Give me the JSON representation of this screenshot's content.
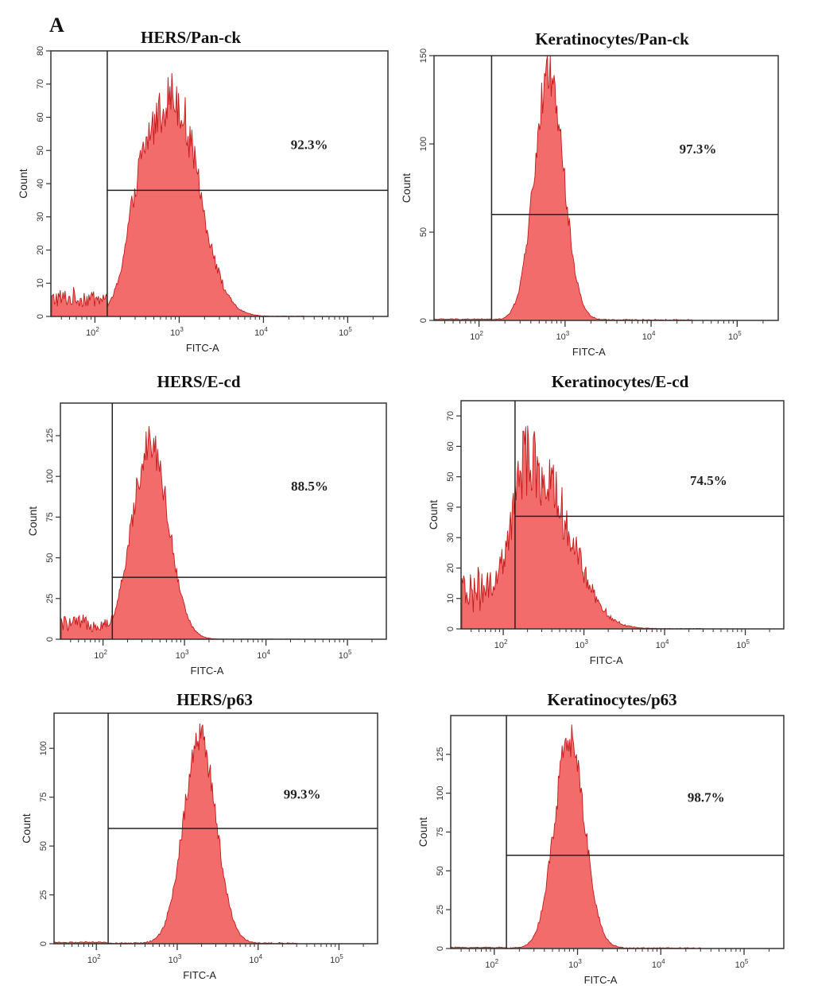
{
  "panel_label": "A",
  "colors": {
    "fill": "#f26c6c",
    "edge": "#c41a1a",
    "axis": "#333333",
    "gate": "#222222"
  },
  "chart_data": [
    {
      "type": "area",
      "title": "HERS/Pan-ck",
      "xlabel": "FITC-A",
      "ylabel": "Count",
      "x_scale": "log",
      "xlim": [
        30,
        300000
      ],
      "ylim": [
        0,
        80
      ],
      "y_ticks": [
        0,
        10,
        20,
        30,
        40,
        50,
        60,
        70,
        80
      ],
      "x_ticks": [
        {
          "value": 100,
          "base": "10",
          "exp": "2"
        },
        {
          "value": 1000,
          "base": "10",
          "exp": "3"
        },
        {
          "value": 10000,
          "base": "10",
          "exp": "4"
        },
        {
          "value": 100000,
          "base": "10",
          "exp": "5"
        }
      ],
      "gate_x": 140,
      "gate_y": 38,
      "annotation": "92.3%",
      "baseline_noise": 8,
      "peaks": [
        {
          "center": 850,
          "height": 66,
          "sigma_log": 0.3
        },
        {
          "center": 330,
          "height": 18,
          "sigma_log": 0.15
        }
      ],
      "noise": 0.12
    },
    {
      "type": "area",
      "title": "Keratinocytes/Pan-ck",
      "xlabel": "FITC-A",
      "ylabel": "Count",
      "x_scale": "log",
      "xlim": [
        30,
        300000
      ],
      "ylim": [
        0,
        150
      ],
      "y_ticks": [
        0,
        50,
        100,
        150
      ],
      "x_ticks": [
        {
          "value": 100,
          "base": "10",
          "exp": "2"
        },
        {
          "value": 1000,
          "base": "10",
          "exp": "3"
        },
        {
          "value": 10000,
          "base": "10",
          "exp": "4"
        },
        {
          "value": 100000,
          "base": "10",
          "exp": "5"
        }
      ],
      "gate_x": 140,
      "gate_y": 60,
      "annotation": "97.3%",
      "baseline_noise": 1,
      "peaks": [
        {
          "center": 650,
          "height": 140,
          "sigma_log": 0.17
        }
      ],
      "noise": 0.09
    },
    {
      "type": "area",
      "title": "HERS/E-cd",
      "xlabel": "FITC-A",
      "ylabel": "Count",
      "x_scale": "log",
      "xlim": [
        30,
        300000
      ],
      "ylim": [
        0,
        145
      ],
      "y_ticks": [
        0,
        25,
        50,
        75,
        100,
        125
      ],
      "x_ticks": [
        {
          "value": 100,
          "base": "10",
          "exp": "2"
        },
        {
          "value": 1000,
          "base": "10",
          "exp": "3"
        },
        {
          "value": 10000,
          "base": "10",
          "exp": "4"
        },
        {
          "value": 100000,
          "base": "10",
          "exp": "5"
        }
      ],
      "gate_x": 130,
      "gate_y": 38,
      "annotation": "88.5%",
      "baseline_noise": 14,
      "peaks": [
        {
          "center": 380,
          "height": 122,
          "sigma_log": 0.22
        }
      ],
      "noise": 0.1
    },
    {
      "type": "area",
      "title": "Keratinocytes/E-cd",
      "xlabel": "FITC-A",
      "ylabel": "Count",
      "x_scale": "log",
      "xlim": [
        30,
        300000
      ],
      "ylim": [
        0,
        75
      ],
      "y_ticks": [
        0,
        10,
        20,
        30,
        40,
        50,
        60,
        70
      ],
      "x_ticks": [
        {
          "value": 100,
          "base": "10",
          "exp": "2"
        },
        {
          "value": 1000,
          "base": "10",
          "exp": "3"
        },
        {
          "value": 10000,
          "base": "10",
          "exp": "4"
        },
        {
          "value": 100000,
          "base": "10",
          "exp": "5"
        }
      ],
      "gate_x": 140,
      "gate_y": 37,
      "annotation": "74.5%",
      "baseline_noise": 18,
      "peaks": [
        {
          "center": 300,
          "height": 48,
          "sigma_log": 0.38
        },
        {
          "center": 180,
          "height": 14,
          "sigma_log": 0.12
        }
      ],
      "noise": 0.22
    },
    {
      "type": "area",
      "title": "HERS/p63",
      "xlabel": "FITC-A",
      "ylabel": "Count",
      "x_scale": "log",
      "xlim": [
        30,
        300000
      ],
      "ylim": [
        0,
        118
      ],
      "y_ticks": [
        0,
        25,
        50,
        75,
        100
      ],
      "x_ticks": [
        {
          "value": 100,
          "base": "10",
          "exp": "2"
        },
        {
          "value": 1000,
          "base": "10",
          "exp": "3"
        },
        {
          "value": 10000,
          "base": "10",
          "exp": "4"
        },
        {
          "value": 100000,
          "base": "10",
          "exp": "5"
        }
      ],
      "gate_x": 140,
      "gate_y": 59,
      "annotation": "99.3%",
      "baseline_noise": 1,
      "peaks": [
        {
          "center": 1900,
          "height": 106,
          "sigma_log": 0.2
        }
      ],
      "noise": 0.08
    },
    {
      "type": "area",
      "title": "Keratinocytes/p63",
      "xlabel": "FITC-A",
      "ylabel": "Count",
      "x_scale": "log",
      "xlim": [
        30,
        300000
      ],
      "ylim": [
        0,
        150
      ],
      "y_ticks": [
        0,
        25,
        50,
        75,
        100,
        125
      ],
      "x_ticks": [
        {
          "value": 100,
          "base": "10",
          "exp": "2"
        },
        {
          "value": 1000,
          "base": "10",
          "exp": "3"
        },
        {
          "value": 10000,
          "base": "10",
          "exp": "4"
        },
        {
          "value": 100000,
          "base": "10",
          "exp": "5"
        }
      ],
      "gate_x": 140,
      "gate_y": 60,
      "annotation": "98.7%",
      "baseline_noise": 1,
      "peaks": [
        {
          "center": 800,
          "height": 135,
          "sigma_log": 0.18
        }
      ],
      "noise": 0.09
    }
  ]
}
